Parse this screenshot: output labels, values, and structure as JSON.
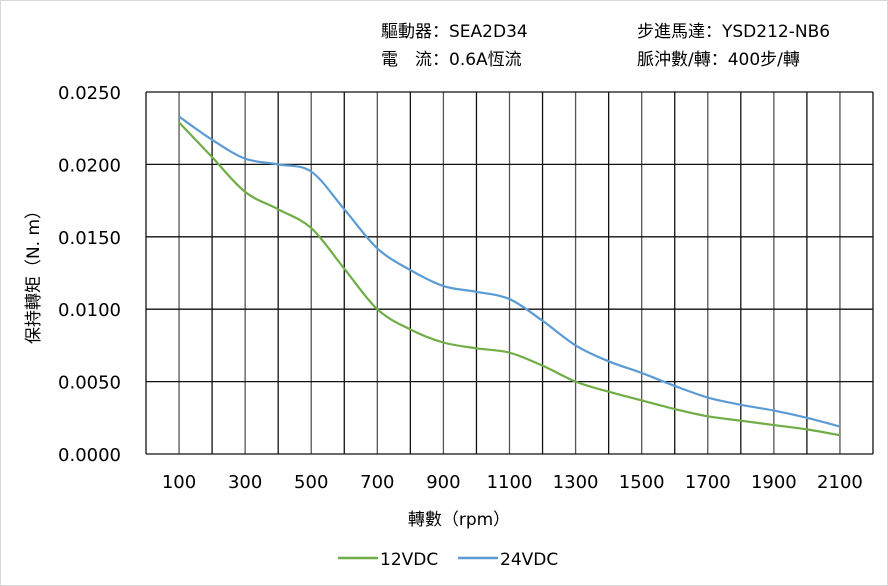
{
  "header": {
    "driver": "驅動器：SEA2D34",
    "current": "電　流：0.6A恆流",
    "motor": "步進馬達：YSD212-NB6",
    "pulses": "脈沖數/轉：400步/轉"
  },
  "chart_data": {
    "type": "line",
    "title": "",
    "xlabel": "轉數（rpm）",
    "ylabel": "保持轉矩（N. m）",
    "xlim": [
      0,
      2200
    ],
    "ylim": [
      0,
      0.025
    ],
    "grid": true,
    "legend_position": "bottom",
    "x_ticks": [
      "100",
      "300",
      "500",
      "700",
      "900",
      "1100",
      "1300",
      "1500",
      "1700",
      "1900",
      "2100"
    ],
    "y_ticks": [
      "0.0000",
      "0.0050",
      "0.0100",
      "0.0150",
      "0.0200",
      "0.0250"
    ],
    "x": [
      100,
      200,
      300,
      400,
      500,
      600,
      700,
      800,
      900,
      1000,
      1100,
      1200,
      1300,
      1400,
      1500,
      1600,
      1700,
      1800,
      1900,
      2000,
      2100
    ],
    "series": [
      {
        "name": "12VDC",
        "color": "#70ad47",
        "values": [
          0.0229,
          0.0205,
          0.0181,
          0.0169,
          0.0156,
          0.0128,
          0.01,
          0.0086,
          0.0077,
          0.0073,
          0.007,
          0.0061,
          0.005,
          0.0043,
          0.0037,
          0.0031,
          0.0026,
          0.0023,
          0.002,
          0.0017,
          0.0013
        ]
      },
      {
        "name": "24VDC",
        "color": "#5b9bd5",
        "values": [
          0.0233,
          0.0217,
          0.0204,
          0.02,
          0.0195,
          0.0169,
          0.0142,
          0.0127,
          0.0116,
          0.0112,
          0.0107,
          0.0092,
          0.0075,
          0.0064,
          0.0056,
          0.0047,
          0.0039,
          0.0034,
          0.003,
          0.0025,
          0.0019
        ]
      }
    ]
  }
}
